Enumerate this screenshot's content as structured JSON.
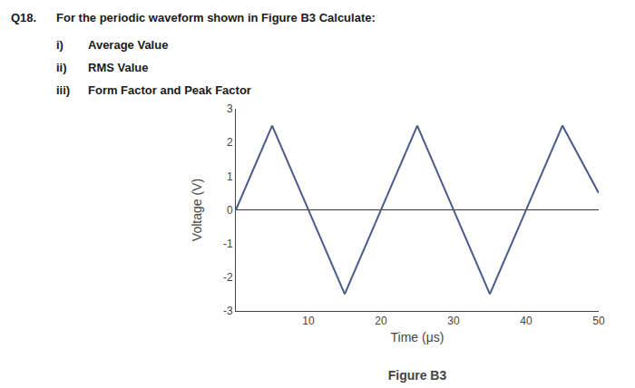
{
  "chart_data": {
    "type": "line",
    "title": "Figure B3",
    "annotations": [
      "Q18.",
      "For the periodic waveform shown in Figure B3 Calculate:",
      "i)",
      "Average Value",
      "ii)",
      "RMS Value",
      "iii)",
      "Form Factor and Peak Factor"
    ],
    "xlabel": "Time (μs)",
    "ylabel": "Voltage (V)",
    "x": [
      0,
      5,
      15,
      20,
      25,
      35,
      40,
      45,
      50
    ],
    "values": [
      0,
      2.5,
      -2.5,
      0,
      2.5,
      -2.5,
      0,
      2.5,
      0.5
    ],
    "color": "#4a5a8a",
    "xlim": [
      0,
      50
    ],
    "xticks": [
      10,
      20,
      30,
      40,
      50
    ],
    "ylim": [
      -3,
      3
    ],
    "yticks": [
      -3,
      -2,
      -1,
      0,
      1,
      2,
      3
    ],
    "grid": false
  }
}
